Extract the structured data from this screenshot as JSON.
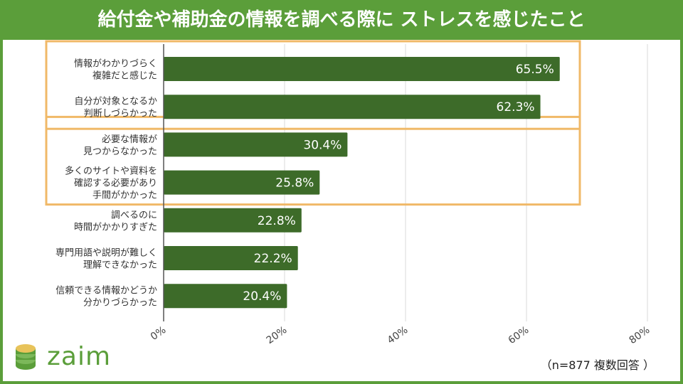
{
  "header": {
    "title": "給付金や補助金の情報を調べる際に ストレスを感じたこと"
  },
  "colors": {
    "bar": "#3d6b29",
    "accent_green": "#5b9e3a",
    "highlight": "#f0b968",
    "grid": "#d9d9d9"
  },
  "chart_data": {
    "type": "bar",
    "orientation": "horizontal",
    "title": "給付金や補助金の情報を調べる際に ストレスを感じたこと",
    "categories": [
      [
        "情報がわかりづらく",
        "複雑だと感じた"
      ],
      [
        "自分が対象となるか",
        "判断しづらかった"
      ],
      [
        "必要な情報が",
        "見つからなかった"
      ],
      [
        "多くのサイトや資料を",
        "確認する必要があり",
        "手間がかかった"
      ],
      [
        "調べるのに",
        "時間がかかりすぎた"
      ],
      [
        "専門用語や説明が難しく",
        "理解できなかった"
      ],
      [
        "信頼できる情報かどうか",
        "分かりづらかった"
      ]
    ],
    "values": [
      65.5,
      62.3,
      30.4,
      25.8,
      22.8,
      22.2,
      20.4
    ],
    "value_labels": [
      "65.5%",
      "62.3%",
      "30.4%",
      "25.8%",
      "22.8%",
      "22.2%",
      "20.4%"
    ],
    "xlim": [
      0,
      80
    ],
    "xticks": [
      0,
      20,
      40,
      60,
      80
    ],
    "xtick_labels": [
      "0%",
      "20%",
      "40%",
      "60%",
      "80%"
    ],
    "highlight_groups": [
      [
        0,
        1
      ],
      [
        2,
        3
      ]
    ],
    "grid": true
  },
  "footer": {
    "logo_text": "zaim",
    "note": "（n=877 複数回答 ）"
  }
}
